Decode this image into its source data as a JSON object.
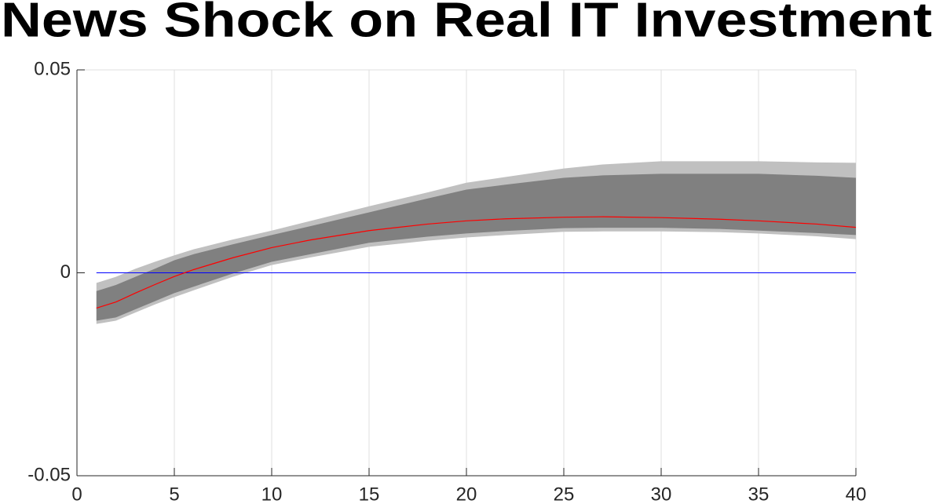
{
  "chart_data": {
    "type": "line",
    "title": "News Shock on Real IT Investment",
    "x": [
      1,
      2,
      3,
      4,
      5,
      6,
      8,
      10,
      12,
      15,
      18,
      20,
      22,
      25,
      27,
      30,
      33,
      35,
      38,
      40
    ],
    "series": [
      {
        "color": "#ff0000",
        "values": [
          -0.0087,
          -0.0072,
          -0.005,
          -0.0029,
          -0.0009,
          0.0008,
          0.0037,
          0.0062,
          0.0081,
          0.0104,
          0.012,
          0.0128,
          0.0133,
          0.0137,
          0.0138,
          0.0136,
          0.0132,
          0.0128,
          0.012,
          0.0112
        ]
      }
    ],
    "bands": [
      {
        "color": "#c0c0c0",
        "upper": [
          -0.0025,
          -0.001,
          0.001,
          0.0027,
          0.0043,
          0.0058,
          0.0082,
          0.0104,
          0.0128,
          0.0164,
          0.0198,
          0.0222,
          0.0236,
          0.0257,
          0.0267,
          0.0275,
          0.0275,
          0.0275,
          0.0272,
          0.0271
        ],
        "lower": [
          -0.0126,
          -0.0118,
          -0.0098,
          -0.0078,
          -0.006,
          -0.0043,
          -0.001,
          0.0019,
          0.0038,
          0.0064,
          0.0079,
          0.0087,
          0.0093,
          0.0101,
          0.0102,
          0.0102,
          0.01,
          0.0097,
          0.009,
          0.0083
        ]
      },
      {
        "color": "#808080",
        "upper": [
          -0.0045,
          -0.003,
          -0.001,
          0.001,
          0.0031,
          0.0046,
          0.007,
          0.0093,
          0.0115,
          0.0149,
          0.0183,
          0.0205,
          0.0217,
          0.0234,
          0.024,
          0.0244,
          0.0244,
          0.0244,
          0.0239,
          0.0234
        ],
        "lower": [
          -0.0118,
          -0.011,
          -0.009,
          -0.007,
          -0.005,
          -0.0034,
          -0.0002,
          0.0027,
          0.0046,
          0.0074,
          0.0089,
          0.0097,
          0.0103,
          0.011,
          0.0111,
          0.0111,
          0.0108,
          0.0104,
          0.0098,
          0.0093
        ]
      }
    ],
    "reference_line": {
      "value": 0,
      "color": "#0000ff"
    },
    "xlim": [
      0,
      40
    ],
    "xticks": [
      0,
      5,
      10,
      15,
      20,
      25,
      30,
      35,
      40
    ],
    "ylim": [
      -0.05,
      0.05
    ],
    "yticks": [
      -0.05,
      0,
      0.05
    ],
    "grid": "x"
  }
}
